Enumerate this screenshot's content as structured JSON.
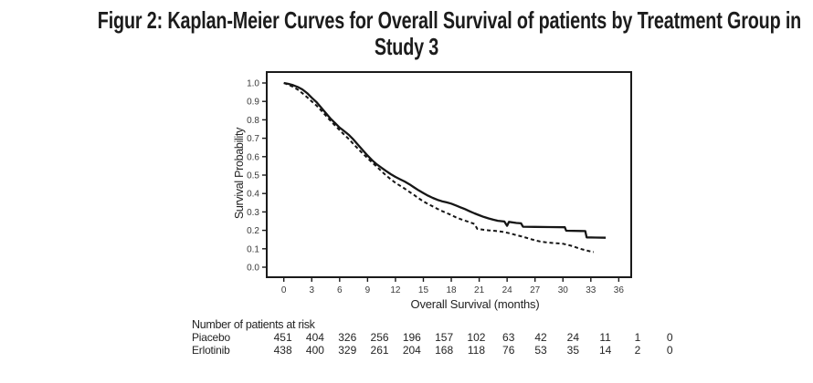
{
  "title": {
    "line1": "Figur 2: Kaplan-Meier Curves for Overall Survival of patients by Treatment Group in",
    "line2": "Study 3"
  },
  "chart_data": {
    "type": "line",
    "subtype": "kaplan-meier-survival",
    "title": "",
    "xlabel": "Overall Survival (months)",
    "ylabel": "Survival Probability",
    "xlim": [
      0,
      36
    ],
    "ylim": [
      0.0,
      1.0
    ],
    "xticks": [
      0,
      3,
      6,
      9,
      12,
      15,
      18,
      21,
      24,
      27,
      30,
      33,
      36
    ],
    "yticks": [
      1.0,
      0.9,
      0.8,
      0.7,
      0.6,
      0.5,
      0.4,
      0.3,
      0.2,
      0.1,
      0.0
    ],
    "grid": false,
    "legend": "none",
    "series": [
      {
        "name": "solid-curve",
        "style": "solid",
        "color": "#161616",
        "points": [
          [
            0,
            1.0
          ],
          [
            0.5,
            0.995
          ],
          [
            1,
            0.988
          ],
          [
            1.5,
            0.978
          ],
          [
            2,
            0.965
          ],
          [
            2.5,
            0.945
          ],
          [
            3,
            0.92
          ],
          [
            3.5,
            0.897
          ],
          [
            4,
            0.868
          ],
          [
            4.5,
            0.838
          ],
          [
            5,
            0.808
          ],
          [
            5.5,
            0.783
          ],
          [
            6,
            0.758
          ],
          [
            6.5,
            0.738
          ],
          [
            7,
            0.718
          ],
          [
            7.5,
            0.692
          ],
          [
            8,
            0.663
          ],
          [
            8.5,
            0.634
          ],
          [
            9,
            0.606
          ],
          [
            9.5,
            0.58
          ],
          [
            10,
            0.558
          ],
          [
            10.5,
            0.54
          ],
          [
            11,
            0.522
          ],
          [
            11.5,
            0.505
          ],
          [
            12,
            0.49
          ],
          [
            12.5,
            0.477
          ],
          [
            13,
            0.465
          ],
          [
            13.5,
            0.45
          ],
          [
            14,
            0.433
          ],
          [
            14.5,
            0.417
          ],
          [
            15,
            0.402
          ],
          [
            15.5,
            0.388
          ],
          [
            16,
            0.376
          ],
          [
            16.5,
            0.366
          ],
          [
            17,
            0.358
          ],
          [
            17.5,
            0.352
          ],
          [
            18,
            0.345
          ],
          [
            18.5,
            0.335
          ],
          [
            19,
            0.325
          ],
          [
            19.5,
            0.315
          ],
          [
            20,
            0.303
          ],
          [
            20.5,
            0.292
          ],
          [
            21,
            0.282
          ],
          [
            21.5,
            0.273
          ],
          [
            22,
            0.265
          ],
          [
            22.5,
            0.258
          ],
          [
            23,
            0.252
          ],
          [
            23.7,
            0.248
          ],
          [
            24,
            0.225
          ],
          [
            24.2,
            0.246
          ],
          [
            25,
            0.24
          ],
          [
            25.5,
            0.238
          ],
          [
            25.7,
            0.22
          ],
          [
            27,
            0.219
          ],
          [
            28.5,
            0.218
          ],
          [
            30.2,
            0.217
          ],
          [
            30.35,
            0.198
          ],
          [
            32.4,
            0.196
          ],
          [
            32.55,
            0.162
          ],
          [
            33.5,
            0.161
          ],
          [
            34.6,
            0.16
          ]
        ]
      },
      {
        "name": "dashed-curve",
        "style": "dashed",
        "color": "#161616",
        "points": [
          [
            0,
            1.0
          ],
          [
            0.5,
            0.99
          ],
          [
            1,
            0.979
          ],
          [
            1.5,
            0.964
          ],
          [
            2,
            0.944
          ],
          [
            2.5,
            0.923
          ],
          [
            3,
            0.9
          ],
          [
            3.5,
            0.878
          ],
          [
            4,
            0.852
          ],
          [
            4.5,
            0.824
          ],
          [
            5,
            0.796
          ],
          [
            5.5,
            0.77
          ],
          [
            6,
            0.744
          ],
          [
            6.5,
            0.719
          ],
          [
            7,
            0.695
          ],
          [
            7.5,
            0.668
          ],
          [
            8,
            0.641
          ],
          [
            8.5,
            0.616
          ],
          [
            9,
            0.592
          ],
          [
            9.5,
            0.568
          ],
          [
            10,
            0.545
          ],
          [
            10.5,
            0.521
          ],
          [
            11,
            0.498
          ],
          [
            11.5,
            0.477
          ],
          [
            12,
            0.458
          ],
          [
            12.5,
            0.442
          ],
          [
            13,
            0.426
          ],
          [
            13.5,
            0.409
          ],
          [
            14,
            0.392
          ],
          [
            14.5,
            0.374
          ],
          [
            15,
            0.357
          ],
          [
            15.5,
            0.343
          ],
          [
            16,
            0.33
          ],
          [
            16.5,
            0.317
          ],
          [
            17,
            0.305
          ],
          [
            17.5,
            0.294
          ],
          [
            18,
            0.283
          ],
          [
            18.5,
            0.271
          ],
          [
            19,
            0.261
          ],
          [
            19.5,
            0.252
          ],
          [
            20,
            0.244
          ],
          [
            20.5,
            0.234
          ],
          [
            20.8,
            0.208
          ],
          [
            21.5,
            0.203
          ],
          [
            22,
            0.2
          ],
          [
            23,
            0.196
          ],
          [
            23.5,
            0.192
          ],
          [
            24,
            0.187
          ],
          [
            24.5,
            0.181
          ],
          [
            25,
            0.174
          ],
          [
            25.5,
            0.168
          ],
          [
            26,
            0.161
          ],
          [
            26.5,
            0.153
          ],
          [
            27,
            0.146
          ],
          [
            27.5,
            0.14
          ],
          [
            28,
            0.136
          ],
          [
            28.5,
            0.133
          ],
          [
            29,
            0.131
          ],
          [
            29.5,
            0.129
          ],
          [
            30,
            0.127
          ],
          [
            30.5,
            0.122
          ],
          [
            31,
            0.115
          ],
          [
            31.5,
            0.106
          ],
          [
            32,
            0.098
          ],
          [
            32.5,
            0.091
          ],
          [
            33,
            0.085
          ],
          [
            33.3,
            0.082
          ]
        ]
      }
    ]
  },
  "at_risk": {
    "header": "Number of patients at risk",
    "timepoints": [
      0,
      3,
      6,
      9,
      12,
      15,
      18,
      21,
      24,
      27,
      30,
      33,
      36
    ],
    "rows": [
      {
        "label": "Piacebo",
        "counts": [
          451,
          404,
          326,
          256,
          196,
          157,
          102,
          63,
          42,
          24,
          11,
          1,
          0
        ]
      },
      {
        "label": "Erlotinib",
        "counts": [
          438,
          400,
          329,
          261,
          204,
          168,
          118,
          76,
          53,
          35,
          14,
          2,
          0
        ]
      }
    ]
  },
  "colors": {
    "ink": "#1c1c1c",
    "curve": "#161616",
    "axis": "#1a1a1a",
    "tick_text": "#3a3a3a",
    "background": "#ffffff"
  }
}
